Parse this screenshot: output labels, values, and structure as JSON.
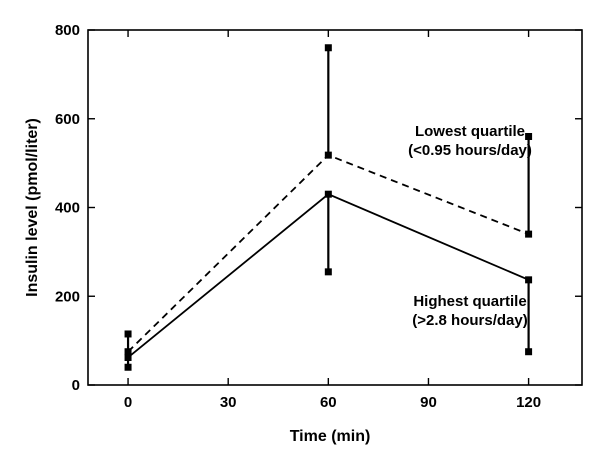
{
  "chart_data": {
    "type": "line",
    "xlabel": "Time (min)",
    "ylabel": "Insulin level (pmol/liter)",
    "xlim": [
      0,
      120
    ],
    "ylim": [
      0,
      800
    ],
    "x_ticks": [
      0,
      30,
      60,
      90,
      120
    ],
    "y_ticks": [
      0,
      200,
      400,
      600,
      800
    ],
    "grid": false,
    "series": [
      {
        "name": "Lowest quartile (<0.95 hours/day)",
        "label_lines": [
          "Lowest quartile",
          "(<0.95 hours/day)"
        ],
        "style": "dashed",
        "x": [
          0,
          60,
          120
        ],
        "y": [
          75,
          518,
          340
        ],
        "error_high": [
          115,
          760,
          560
        ]
      },
      {
        "name": "Highest quartile (>2.8 hours/day)",
        "label_lines": [
          "Highest quartile",
          "(>2.8 hours/day)"
        ],
        "style": "solid",
        "x": [
          0,
          60,
          120
        ],
        "y": [
          62,
          430,
          237
        ],
        "error_low": [
          40,
          255,
          75
        ]
      }
    ]
  }
}
